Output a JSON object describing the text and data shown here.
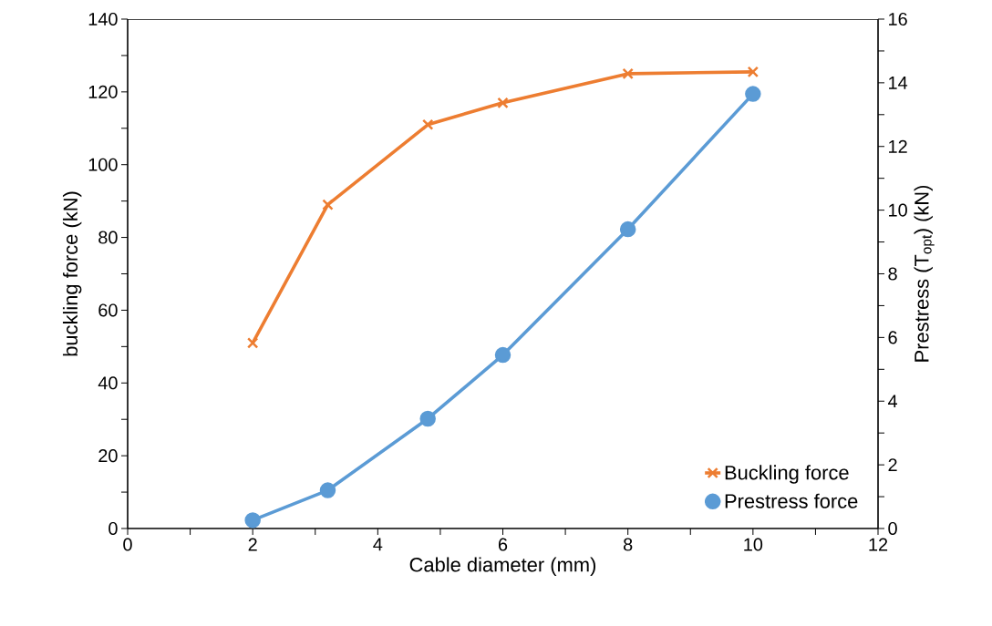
{
  "chart_data": {
    "type": "line",
    "xlabel": "Cable diameter (mm)",
    "ylabel": "buckling force (kN)",
    "y2label": "Prestress (T$_{opt}$) (kN)",
    "xlim": [
      0,
      12
    ],
    "xticks": [
      0,
      2,
      4,
      6,
      8,
      10,
      12
    ],
    "ylim": [
      0,
      140
    ],
    "yticks": [
      0,
      20,
      40,
      60,
      80,
      100,
      120,
      140
    ],
    "y2lim": [
      0,
      16
    ],
    "y2ticks": [
      0,
      2,
      4,
      6,
      8,
      10,
      12,
      14,
      16
    ],
    "x": [
      2,
      3.2,
      4.8,
      6,
      8,
      10
    ],
    "series": [
      {
        "name": "Buckling force",
        "color": "#ed7d31",
        "marker": "cross",
        "values": [
          51,
          89,
          111,
          117,
          125,
          125.5
        ]
      },
      {
        "name": "Prestress force",
        "color": "#5b9bd5",
        "marker": "circle",
        "axis": "y2",
        "values": [
          0.26,
          1.2,
          3.45,
          5.45,
          9.4,
          13.65
        ]
      }
    ],
    "legend": "bottom right",
    "grid": false,
    "line_style": "solid"
  }
}
